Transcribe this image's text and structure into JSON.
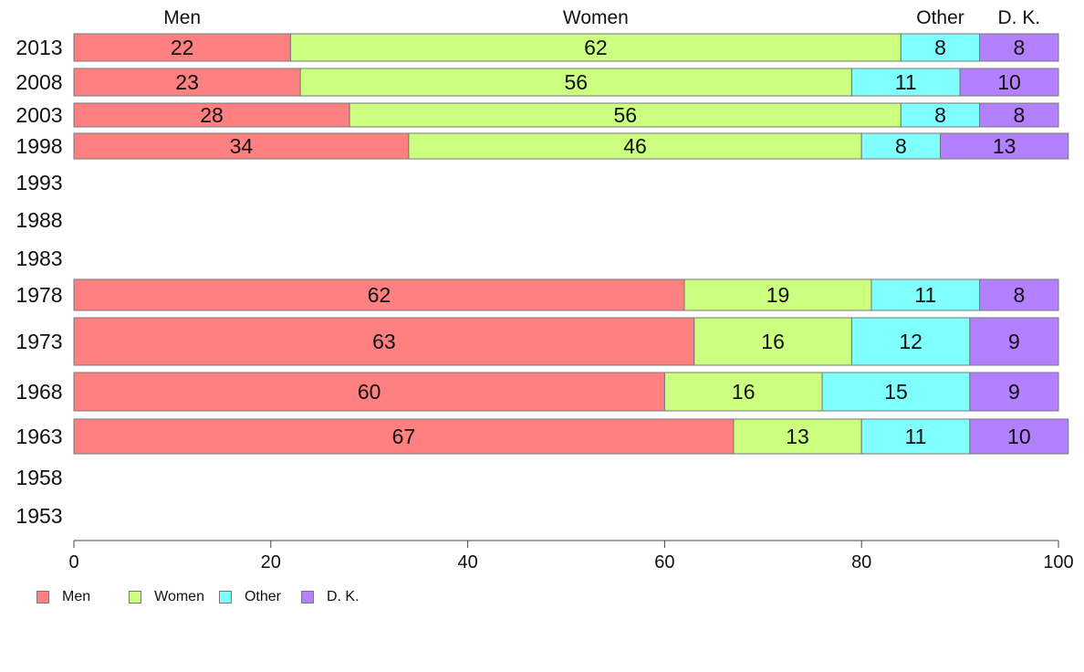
{
  "chart_data": {
    "type": "bar",
    "orientation": "horizontal",
    "stacked": true,
    "title": "",
    "xlabel": "",
    "ylabel": "",
    "xlim": [
      0,
      100
    ],
    "x_ticks": [
      "0",
      "20",
      "40",
      "60",
      "80",
      "100"
    ],
    "categories": [
      "2013",
      "2008",
      "2003",
      "1998",
      "1993",
      "1988",
      "1983",
      "1978",
      "1973",
      "1968",
      "1963",
      "1958",
      "1953"
    ],
    "top_labels": [
      "Men",
      "Women",
      "Other",
      "D. K."
    ],
    "series": [
      {
        "name": "Men",
        "color": "#ff8080",
        "values": [
          22,
          23,
          28,
          34,
          null,
          null,
          null,
          62,
          63,
          60,
          67,
          null,
          null
        ]
      },
      {
        "name": "Women",
        "color": "#ccff80",
        "values": [
          62,
          56,
          56,
          46,
          null,
          null,
          null,
          19,
          16,
          16,
          13,
          null,
          null
        ]
      },
      {
        "name": "Other",
        "color": "#80ffff",
        "values": [
          8,
          11,
          8,
          8,
          null,
          null,
          null,
          11,
          12,
          15,
          11,
          null,
          null
        ]
      },
      {
        "name": "D. K.",
        "color": "#b380ff",
        "values": [
          8,
          10,
          8,
          13,
          null,
          null,
          null,
          8,
          9,
          9,
          10,
          null,
          null
        ]
      }
    ],
    "legend_position": "bottom-left",
    "grid": false
  }
}
